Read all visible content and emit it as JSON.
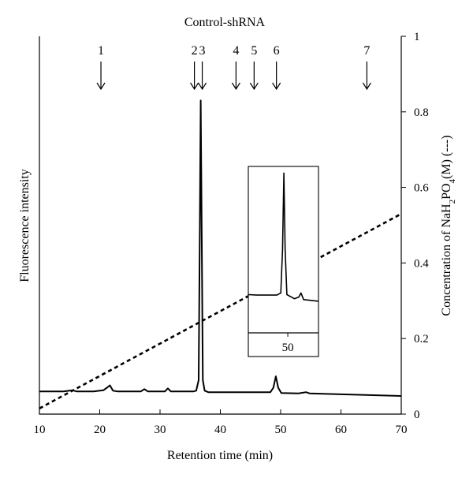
{
  "chart_data": {
    "type": "line",
    "title": "Control-shRNA",
    "xlabel": "Retention time (min)",
    "ylabel_left": "Fluorescence intensity",
    "ylabel_right": {
      "prefix": "Concentration of NaH",
      "sub1": "2",
      "mid": "PO",
      "sub2": "4",
      "suffix": "(M) (---)"
    },
    "xlim": [
      10,
      70
    ],
    "x_ticks": [
      10,
      20,
      30,
      40,
      50,
      60,
      70
    ],
    "x_tick_labels": [
      "10",
      "20",
      "30",
      "40",
      "50",
      "60",
      "70"
    ],
    "y_right_lim": [
      0,
      1
    ],
    "y_right_ticks": [
      0,
      0.2,
      0.4,
      0.6,
      0.8,
      1
    ],
    "y_right_tick_labels": [
      "0",
      "0.2",
      "0.4",
      "0.6",
      "0.8",
      "1"
    ],
    "peak_markers": [
      {
        "label": "1",
        "x": 20.2
      },
      {
        "label": "2",
        "x": 35.7
      },
      {
        "label": "3",
        "x": 37.0
      },
      {
        "label": "4",
        "x": 42.6
      },
      {
        "label": "5",
        "x": 45.6
      },
      {
        "label": "6",
        "x": 49.3
      },
      {
        "label": "7",
        "x": 64.3
      }
    ],
    "series": [
      {
        "style": "solid",
        "axis": "left",
        "points": [
          [
            10,
            0.06
          ],
          [
            14,
            0.06
          ],
          [
            15.5,
            0.063
          ],
          [
            16.2,
            0.06
          ],
          [
            19,
            0.06
          ],
          [
            20.6,
            0.063
          ],
          [
            21.2,
            0.07
          ],
          [
            21.7,
            0.076
          ],
          [
            22.2,
            0.062
          ],
          [
            23,
            0.06
          ],
          [
            26.8,
            0.06
          ],
          [
            27.4,
            0.066
          ],
          [
            28,
            0.06
          ],
          [
            30.8,
            0.06
          ],
          [
            31.3,
            0.068
          ],
          [
            31.8,
            0.06
          ],
          [
            35.5,
            0.06
          ],
          [
            36.0,
            0.062
          ],
          [
            36.4,
            0.09
          ],
          [
            36.6,
            0.5
          ],
          [
            36.75,
            0.83
          ],
          [
            36.9,
            0.5
          ],
          [
            37.1,
            0.09
          ],
          [
            37.4,
            0.062
          ],
          [
            38,
            0.058
          ],
          [
            48.3,
            0.058
          ],
          [
            48.8,
            0.07
          ],
          [
            49.2,
            0.1
          ],
          [
            49.6,
            0.07
          ],
          [
            50.1,
            0.056
          ],
          [
            53,
            0.055
          ],
          [
            54.2,
            0.058
          ],
          [
            54.8,
            0.055
          ],
          [
            70,
            0.048
          ]
        ]
      },
      {
        "style": "dashed",
        "axis": "right",
        "points": [
          [
            10,
            0.015
          ],
          [
            70,
            0.53
          ]
        ]
      }
    ],
    "inset": {
      "type": "line",
      "x_ticks": [
        50
      ],
      "x_tick_labels": [
        "50"
      ],
      "xlim": [
        41,
        57
      ],
      "ylim": [
        0,
        1
      ],
      "points": [
        [
          41,
          0.23
        ],
        [
          43,
          0.227
        ],
        [
          47.5,
          0.227
        ],
        [
          48.4,
          0.24
        ],
        [
          48.8,
          0.5
        ],
        [
          49.1,
          0.96
        ],
        [
          49.4,
          0.5
        ],
        [
          49.8,
          0.23
        ],
        [
          51.5,
          0.205
        ],
        [
          52.5,
          0.215
        ],
        [
          53,
          0.24
        ],
        [
          53.6,
          0.2
        ],
        [
          57,
          0.19
        ]
      ]
    }
  }
}
